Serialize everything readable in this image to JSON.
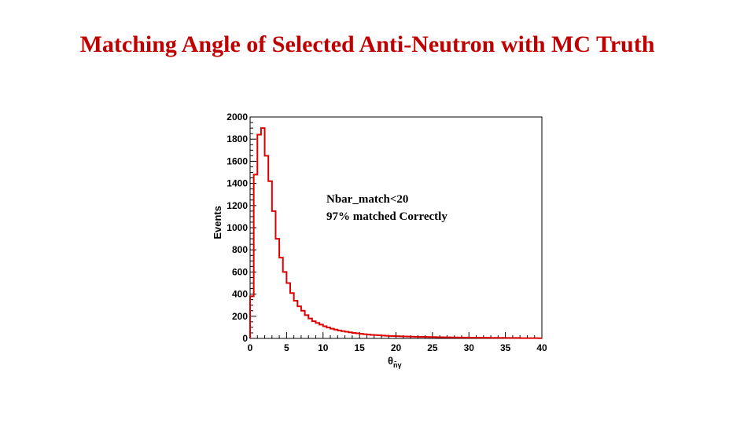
{
  "slide": {
    "title": "Matching Angle of Selected Anti-Neutron with MC Truth"
  },
  "colors": {
    "title": "#c00000",
    "histogram": "#dd0000",
    "axes": "#000000"
  },
  "chart_data": {
    "type": "line",
    "style": "step-histogram",
    "title": "",
    "xlabel": "θ",
    "xlabel_subscript": "n̄γ",
    "ylabel": "Events",
    "xlim": [
      0,
      40
    ],
    "ylim": [
      0,
      2000
    ],
    "x_ticks": [
      0,
      5,
      10,
      15,
      20,
      25,
      30,
      35,
      40
    ],
    "y_ticks": [
      0,
      200,
      400,
      600,
      800,
      1000,
      1200,
      1400,
      1600,
      1800,
      2000
    ],
    "grid": false,
    "legend": "none",
    "annotations": [
      "Nbar_match<20",
      "97% matched Correctly"
    ],
    "series": [
      {
        "bin_width": 0.5,
        "x": [
          0.25,
          0.75,
          1.25,
          1.75,
          2.25,
          2.75,
          3.25,
          3.75,
          4.25,
          4.75,
          5.25,
          5.75,
          6.25,
          6.75,
          7.25,
          7.75,
          8.25,
          8.75,
          9.25,
          9.75,
          10.25,
          10.75,
          11.25,
          11.75,
          12.25,
          12.75,
          13.25,
          13.75,
          14.25,
          14.75,
          15.25,
          15.75,
          16.25,
          16.75,
          17.25,
          17.75,
          18.25,
          18.75,
          19.25,
          19.75,
          20.25,
          20.75,
          21.25,
          21.75,
          22.25,
          22.75,
          23.25,
          23.75,
          24.25,
          24.75,
          25.25,
          25.75,
          26.25,
          26.75,
          27.25,
          27.75,
          28.25,
          28.75,
          29.25,
          29.75,
          30.25,
          30.75,
          31.25,
          31.75,
          32.25,
          32.75,
          33.25,
          33.75,
          34.25,
          34.75,
          35.25,
          35.75,
          36.25,
          36.75,
          37.25,
          37.75,
          38.25,
          38.75,
          39.25,
          39.75
        ],
        "values": [
          380,
          1480,
          1840,
          1900,
          1650,
          1420,
          1150,
          900,
          730,
          600,
          500,
          410,
          340,
          290,
          250,
          210,
          180,
          155,
          140,
          125,
          110,
          98,
          88,
          80,
          72,
          66,
          60,
          55,
          50,
          46,
          42,
          38,
          35,
          32,
          30,
          28,
          26,
          24,
          22,
          21,
          20,
          19,
          18,
          17,
          16,
          15,
          14,
          14,
          13,
          12,
          12,
          11,
          11,
          10,
          10,
          9,
          9,
          8,
          8,
          8,
          7,
          7,
          7,
          6,
          6,
          6,
          5,
          5,
          5,
          5,
          4,
          4,
          4,
          4,
          3,
          3,
          3,
          3,
          3,
          2
        ]
      }
    ]
  }
}
